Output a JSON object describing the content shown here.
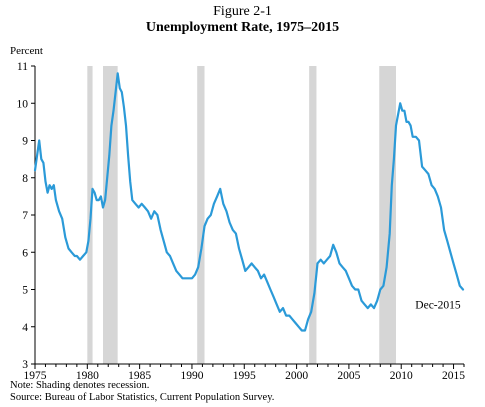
{
  "figure": {
    "label": "Figure 2-1",
    "title": "Unemployment Rate, 1975–2015",
    "note": "Note: Shading denotes recession.",
    "source": "Source: Bureau of Labor Statistics, Current Population Survey."
  },
  "chart_data": {
    "type": "line",
    "title": "Unemployment Rate, 1975–2015",
    "ylabel": "Percent",
    "xlabel": "",
    "xlim": [
      1975,
      2016
    ],
    "ylim": [
      3,
      11
    ],
    "x_ticks": [
      1975,
      1980,
      1985,
      1990,
      1995,
      2000,
      2005,
      2010,
      2015
    ],
    "y_ticks": [
      3,
      4,
      5,
      6,
      7,
      8,
      9,
      10,
      11
    ],
    "grid": false,
    "line_color": "#2b9ad8",
    "recession_color": "#d6d6d6",
    "recessions": [
      [
        1980.0,
        1980.5
      ],
      [
        1981.5,
        1982.9
      ],
      [
        1990.5,
        1991.2
      ],
      [
        2001.2,
        2001.9
      ],
      [
        2007.9,
        2009.5
      ]
    ],
    "annotation": {
      "text": "Dec-2015",
      "x": 2015.9,
      "y": 5.0
    },
    "series": [
      {
        "x": [
          1975.0,
          1975.2,
          1975.4,
          1975.6,
          1975.8,
          1976.0,
          1976.2,
          1976.4,
          1976.6,
          1976.8,
          1977.0,
          1977.3,
          1977.6,
          1977.9,
          1978.2,
          1978.5,
          1978.8,
          1979.0,
          1979.3,
          1979.6,
          1979.9,
          1980.1,
          1980.3,
          1980.5,
          1980.7,
          1980.9,
          1981.1,
          1981.3,
          1981.5,
          1981.7,
          1981.9,
          1982.1,
          1982.3,
          1982.5,
          1982.7,
          1982.9,
          1983.1,
          1983.3,
          1983.5,
          1983.7,
          1983.9,
          1984.1,
          1984.3,
          1984.6,
          1984.9,
          1985.2,
          1985.5,
          1985.8,
          1986.1,
          1986.4,
          1986.7,
          1987.0,
          1987.3,
          1987.6,
          1987.9,
          1988.2,
          1988.5,
          1988.8,
          1989.1,
          1989.4,
          1989.7,
          1990.0,
          1990.3,
          1990.6,
          1990.9,
          1991.2,
          1991.5,
          1991.8,
          1992.1,
          1992.4,
          1992.7,
          1993.0,
          1993.3,
          1993.6,
          1993.9,
          1994.2,
          1994.5,
          1994.8,
          1995.1,
          1995.4,
          1995.7,
          1996.0,
          1996.3,
          1996.6,
          1996.9,
          1997.2,
          1997.5,
          1997.8,
          1998.1,
          1998.4,
          1998.7,
          1999.0,
          1999.3,
          1999.6,
          1999.9,
          2000.2,
          2000.5,
          2000.8,
          2001.1,
          2001.4,
          2001.7,
          2002.0,
          2002.3,
          2002.6,
          2002.9,
          2003.2,
          2003.5,
          2003.8,
          2004.1,
          2004.4,
          2004.7,
          2005.0,
          2005.3,
          2005.6,
          2005.9,
          2006.2,
          2006.5,
          2006.8,
          2007.1,
          2007.4,
          2007.7,
          2008.0,
          2008.3,
          2008.6,
          2008.9,
          2009.1,
          2009.3,
          2009.5,
          2009.7,
          2009.9,
          2010.1,
          2010.3,
          2010.5,
          2010.7,
          2010.9,
          2011.1,
          2011.4,
          2011.7,
          2012.0,
          2012.3,
          2012.6,
          2012.9,
          2013.2,
          2013.5,
          2013.8,
          2014.1,
          2014.4,
          2014.7,
          2015.0,
          2015.3,
          2015.6,
          2015.9
        ],
        "values": [
          8.2,
          8.6,
          9.0,
          8.5,
          8.4,
          7.9,
          7.6,
          7.8,
          7.7,
          7.8,
          7.4,
          7.1,
          6.9,
          6.4,
          6.1,
          6.0,
          5.9,
          5.9,
          5.8,
          5.9,
          6.0,
          6.3,
          6.9,
          7.7,
          7.6,
          7.4,
          7.4,
          7.5,
          7.2,
          7.4,
          8.0,
          8.6,
          9.4,
          9.8,
          10.3,
          10.8,
          10.4,
          10.3,
          9.9,
          9.4,
          8.6,
          7.9,
          7.4,
          7.3,
          7.2,
          7.3,
          7.2,
          7.1,
          6.9,
          7.1,
          7.0,
          6.6,
          6.3,
          6.0,
          5.9,
          5.7,
          5.5,
          5.4,
          5.3,
          5.3,
          5.3,
          5.3,
          5.4,
          5.6,
          6.1,
          6.7,
          6.9,
          7.0,
          7.3,
          7.5,
          7.7,
          7.3,
          7.1,
          6.8,
          6.6,
          6.5,
          6.1,
          5.8,
          5.5,
          5.6,
          5.7,
          5.6,
          5.5,
          5.3,
          5.4,
          5.2,
          5.0,
          4.8,
          4.6,
          4.4,
          4.5,
          4.3,
          4.3,
          4.2,
          4.1,
          4.0,
          3.9,
          3.9,
          4.2,
          4.4,
          4.9,
          5.7,
          5.8,
          5.7,
          5.8,
          5.9,
          6.2,
          6.0,
          5.7,
          5.6,
          5.5,
          5.3,
          5.1,
          5.0,
          5.0,
          4.7,
          4.6,
          4.5,
          4.6,
          4.5,
          4.7,
          5.0,
          5.1,
          5.6,
          6.5,
          7.8,
          8.5,
          9.4,
          9.7,
          10.0,
          9.8,
          9.8,
          9.5,
          9.5,
          9.4,
          9.1,
          9.1,
          9.0,
          8.3,
          8.2,
          8.1,
          7.8,
          7.7,
          7.5,
          7.2,
          6.6,
          6.3,
          6.0,
          5.7,
          5.4,
          5.1,
          5.0
        ]
      }
    ]
  }
}
